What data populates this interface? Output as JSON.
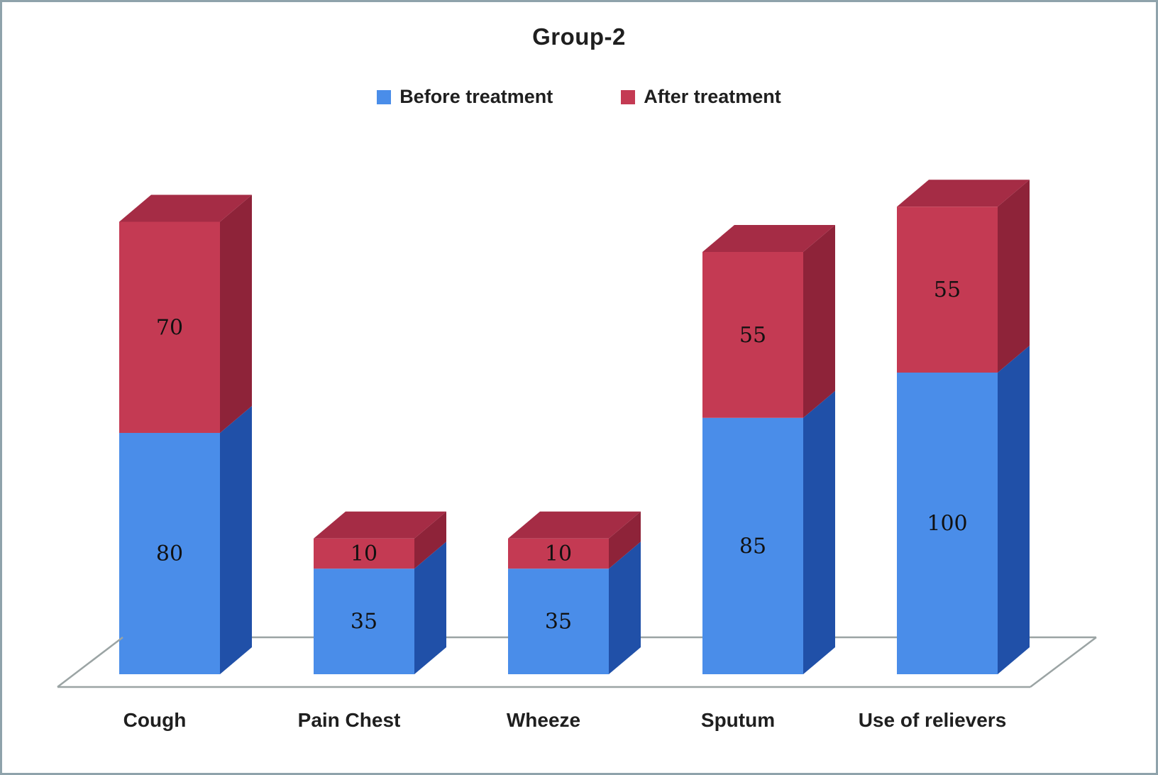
{
  "window": {
    "background": "#ffffff",
    "border_color": "#8fa3ab"
  },
  "chart_data": {
    "type": "bar",
    "variant": "3d-stacked-column",
    "title": "Group-2",
    "categories": [
      "Cough",
      "Pain Chest",
      "Wheeze",
      "Sputum",
      "Use of relievers"
    ],
    "series": [
      {
        "name": "Before treatment",
        "values": [
          80,
          35,
          35,
          85,
          100
        ],
        "front_color": "#4a8de9",
        "side_color": "#2050a8",
        "top_color": "#3a6fd0"
      },
      {
        "name": "After treatment",
        "values": [
          70,
          10,
          10,
          55,
          55
        ],
        "front_color": "#c43a53",
        "side_color": "#8e2339",
        "top_color": "#a52c45"
      }
    ],
    "value_labels_shown": true,
    "legend_position": "top",
    "xlabel": "",
    "ylabel": "",
    "ylim": [
      0,
      160
    ],
    "gridlines": false,
    "floor_color": "#9ba4a4"
  }
}
